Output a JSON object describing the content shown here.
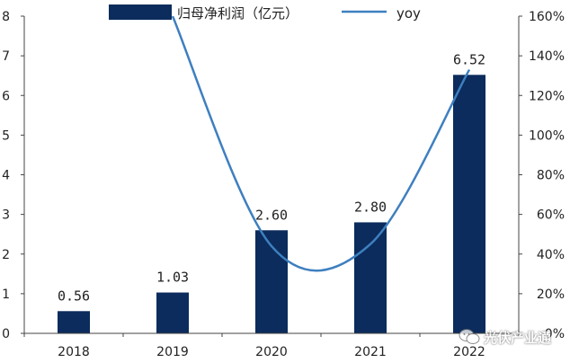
{
  "chart_data": {
    "type": "bar",
    "categories": [
      "2018",
      "2019",
      "2020",
      "2021",
      "2022"
    ],
    "series": [
      {
        "name": "归母净利润（亿元）",
        "kind": "bar",
        "axis": "left",
        "color": "#0b2c5c",
        "values": [
          0.56,
          1.03,
          2.6,
          2.8,
          6.52
        ],
        "labels": [
          "0.56",
          "1.03",
          "2.60",
          "2.80",
          "6.52"
        ]
      },
      {
        "name": "yoy",
        "kind": "line",
        "axis": "right",
        "color": "#3e7fc0",
        "values": [
          null,
          160,
          44,
          45,
          133
        ]
      }
    ],
    "y_left": {
      "min": 0,
      "max": 8,
      "ticks": [
        "0",
        "1",
        "2",
        "3",
        "4",
        "5",
        "6",
        "7",
        "8"
      ]
    },
    "y_right": {
      "min": 0,
      "max": 160,
      "ticks": [
        "0%",
        "20%",
        "40%",
        "60%",
        "80%",
        "100%",
        "120%",
        "140%",
        "160%"
      ]
    },
    "grid": false,
    "legend_position": "top-center",
    "title": "",
    "xlabel": "",
    "ylabel": ""
  },
  "watermark": {
    "text": "光伏产业通",
    "icon": "wechat-icon"
  }
}
